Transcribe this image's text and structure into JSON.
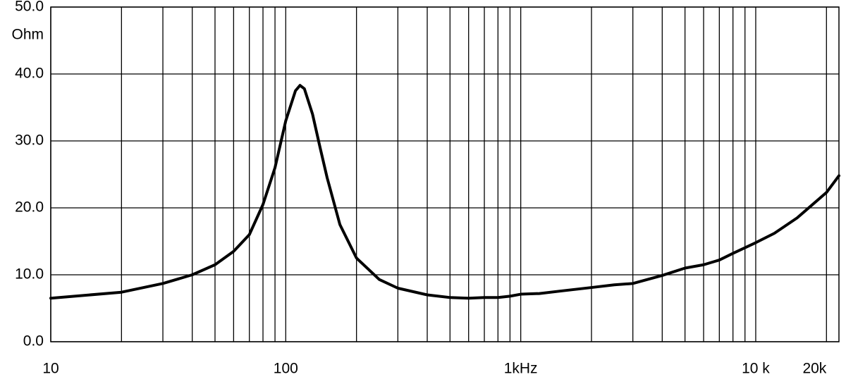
{
  "chart_data": {
    "type": "line",
    "y_unit_label": "Ohm",
    "log_x": true,
    "grid": true,
    "xlim": [
      10,
      22600
    ],
    "ylim": [
      0,
      50
    ],
    "xticks": [
      10,
      100,
      {
        "value": 1000,
        "label": "1kHz"
      },
      {
        "value": 10000,
        "label": "10 k"
      },
      {
        "value": 20000,
        "label": "20k"
      }
    ],
    "xgrid": [
      20,
      30,
      40,
      50,
      60,
      70,
      80,
      90,
      200,
      300,
      400,
      500,
      600,
      700,
      800,
      900,
      2000,
      3000,
      4000,
      5000,
      6000,
      7000,
      8000,
      9000
    ],
    "yticks": [
      {
        "value": 0,
        "label": "0.0"
      },
      {
        "value": 10,
        "label": "10.0"
      },
      {
        "value": 20,
        "label": "20.0"
      },
      {
        "value": 30,
        "label": "30.0"
      },
      {
        "value": 40,
        "label": "40.0"
      },
      {
        "value": 50,
        "label": "50.0"
      }
    ],
    "x": [
      10,
      20,
      30,
      40,
      50,
      60,
      70,
      80,
      90,
      100,
      110,
      115,
      120,
      130,
      140,
      150,
      170,
      200,
      250,
      300,
      400,
      500,
      600,
      700,
      800,
      900,
      1000,
      1200,
      1500,
      2000,
      2500,
      3000,
      4000,
      5000,
      6000,
      7000,
      8000,
      10000,
      12000,
      15000,
      20000,
      22600
    ],
    "series": [
      {
        "color": "#000000",
        "values": [
          6.5,
          7.4,
          8.7,
          10.0,
          11.5,
          13.5,
          16,
          20.5,
          26,
          33,
          37.5,
          38.3,
          37.8,
          34,
          29,
          24.5,
          17.5,
          12.5,
          9.3,
          8.0,
          7.0,
          6.6,
          6.5,
          6.6,
          6.6,
          6.8,
          7.1,
          7.2,
          7.6,
          8.1,
          8.5,
          8.7,
          9.9,
          11.0,
          11.5,
          12.2,
          13.2,
          14.8,
          16.2,
          18.5,
          22.3,
          24.8
        ]
      }
    ]
  }
}
